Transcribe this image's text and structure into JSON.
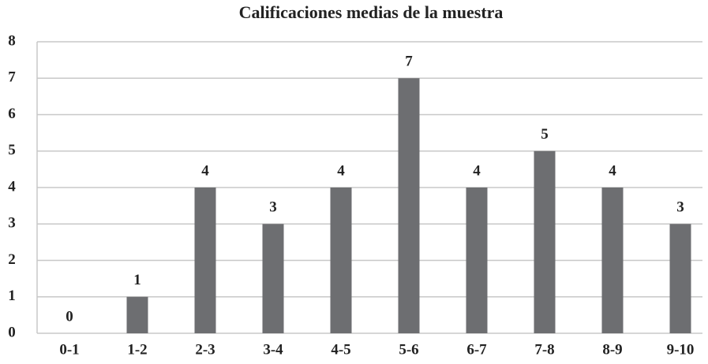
{
  "chart_data": {
    "type": "bar",
    "title": "Calificaciones medias de la muestra",
    "categories": [
      "0-1",
      "1-2",
      "2-3",
      "3-4",
      "4-5",
      "5-6",
      "6-7",
      "7-8",
      "8-9",
      "9-10"
    ],
    "values": [
      0,
      1,
      4,
      3,
      4,
      7,
      4,
      5,
      4,
      3
    ],
    "color": "#6d6e71",
    "ylim": [
      0,
      8
    ],
    "yticks": [
      0,
      1,
      2,
      3,
      4,
      5,
      6,
      7,
      8
    ],
    "grid": true
  }
}
